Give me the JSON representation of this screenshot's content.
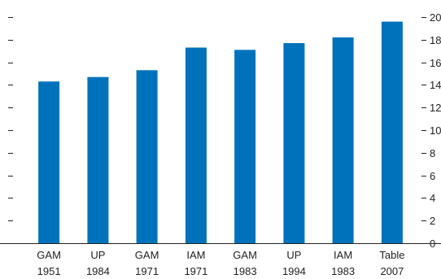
{
  "chart_data": {
    "type": "bar",
    "categories": [
      [
        "GAM",
        "1951"
      ],
      [
        "UP",
        "1984"
      ],
      [
        "GAM",
        "1971"
      ],
      [
        "IAM",
        "1971"
      ],
      [
        "GAM",
        "1983"
      ],
      [
        "UP",
        "1994"
      ],
      [
        "IAM",
        "1983"
      ],
      [
        "Table",
        "2007"
      ]
    ],
    "values": [
      143,
      147,
      153,
      173,
      171,
      177,
      182,
      196
    ],
    "ylim": [
      0,
      200
    ],
    "y_ticks": [
      0,
      20,
      40,
      60,
      80,
      100,
      120,
      140,
      160,
      180,
      200
    ],
    "y_tick_labels": [
      "0",
      "2",
      "4",
      "6",
      "8",
      "10",
      "12",
      "14",
      "16",
      "18",
      "20"
    ],
    "bar_color": "#0072bc",
    "grid": false
  }
}
